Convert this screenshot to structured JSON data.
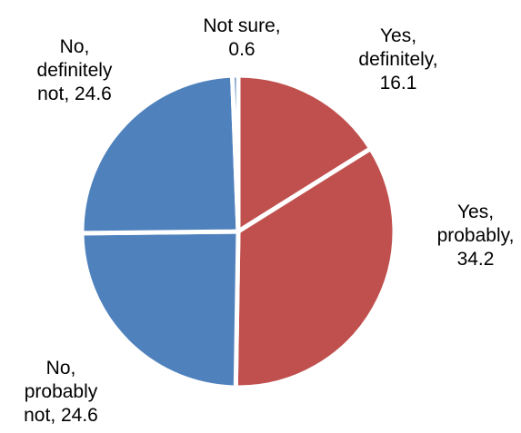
{
  "chart_data": {
    "type": "pie",
    "title": "",
    "slices": [
      {
        "label_lines": [
          "Yes,",
          "definitely,",
          "16.1"
        ],
        "category": "Yes, definitely",
        "value": 16.1,
        "color": "#C0504D"
      },
      {
        "label_lines": [
          "Yes,",
          "probably,",
          "34.2"
        ],
        "category": "Yes, probably",
        "value": 34.2,
        "color": "#C0504D"
      },
      {
        "label_lines": [
          "No,",
          "probably",
          "not, 24.6"
        ],
        "category": "No, probably not",
        "value": 24.6,
        "color": "#4F81BD"
      },
      {
        "label_lines": [
          "No,",
          "definitely",
          "not, 24.6"
        ],
        "category": "No, definitely not",
        "value": 24.6,
        "color": "#4F81BD"
      },
      {
        "label_lines": [
          "Not sure,",
          "0.6"
        ],
        "category": "Not sure",
        "value": 0.6,
        "color": "#4F81BD"
      }
    ],
    "start_angle": "12 o'clock",
    "direction": "clockwise",
    "slice_separator_color": "#FFFFFF"
  }
}
